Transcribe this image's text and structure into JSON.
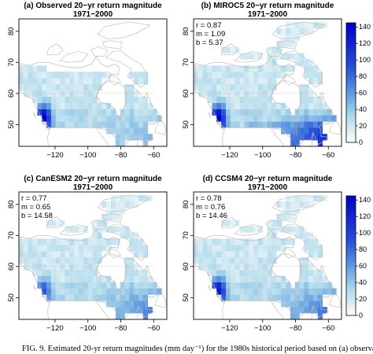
{
  "panels": [
    {
      "id": "a",
      "title_line1": "(a) Observed 20−yr return magnitude",
      "title_line2": "1971−2000",
      "stats": [],
      "colorbar": false,
      "intensity": "obs"
    },
    {
      "id": "b",
      "title_line1": "(b) MIROC5 20−yr return magnitude",
      "title_line2": "1971−2000",
      "stats": [
        "r = 0.87",
        "m = 1.09",
        "b = 5.37"
      ],
      "colorbar": true,
      "intensity": "miroc"
    },
    {
      "id": "c",
      "title_line1": "(c) CanESM2 20−yr return magnitude",
      "title_line2": "1971−2000",
      "stats": [
        "r = 0.77",
        "m = 0.65",
        "b = 14.58"
      ],
      "colorbar": false,
      "intensity": "canesm"
    },
    {
      "id": "d",
      "title_line1": "(d) CCSM4 20−yr return magnitude",
      "title_line2": "1971−2000",
      "stats": [
        "r = 0.78",
        "m = 0.76",
        "b = 14.46"
      ],
      "colorbar": true,
      "intensity": "ccsm"
    }
  ],
  "axes": {
    "lon_ticks": [
      "−120",
      "−100",
      "−80",
      "−60"
    ],
    "lat_ticks": [
      "50",
      "60",
      "70",
      "80"
    ]
  },
  "colorbar": {
    "ticks": [
      "0",
      "20",
      "40",
      "60",
      "80",
      "100",
      "120",
      "140"
    ],
    "min": 0,
    "max": 145
  },
  "caption": "FIG. 9. Estimated 20-yr return magnitudes (mm day⁻¹) for the 1980s historical period based on (a) observations",
  "colors": {
    "land_low": "#dbeef3",
    "land_high": "#0000cd",
    "coast": "#b8b8b8"
  }
}
